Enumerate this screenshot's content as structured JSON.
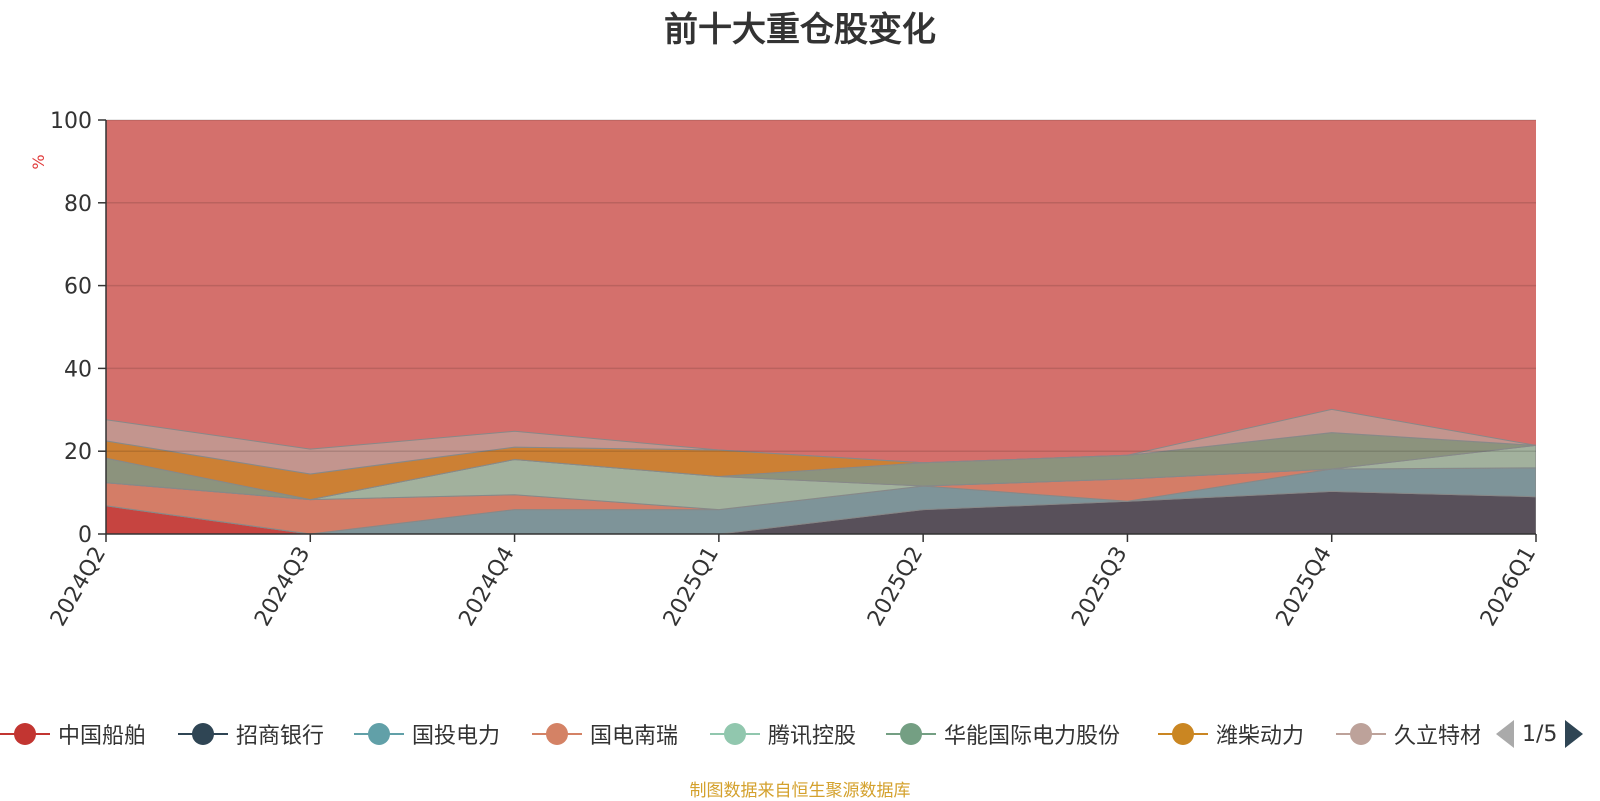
{
  "chart_data": {
    "type": "area",
    "title": "前十大重仓股变化",
    "ylabel": "%",
    "xlabel": "",
    "ylim": [
      0,
      100
    ],
    "yticks": [
      "0",
      "20",
      "40",
      "60",
      "80",
      "100"
    ],
    "categories": [
      "2024Q2",
      "2024Q3",
      "2024Q4",
      "2025Q1",
      "2025Q2",
      "2025Q3",
      "2025Q4",
      "2026Q1"
    ],
    "stacked": true,
    "grid": true,
    "legend_position": "bottom",
    "series": [
      {
        "name": "中国船舶",
        "values": [
          6.8,
          0,
          0,
          0,
          0,
          0,
          0,
          0
        ]
      },
      {
        "name": "招商银行",
        "values": [
          0,
          0,
          0,
          0,
          5.9,
          7.9,
          10.3,
          9
        ]
      },
      {
        "name": "国投电力",
        "values": [
          0,
          0,
          5.9,
          5.9,
          5.7,
          0,
          5.4,
          7
        ]
      },
      {
        "name": "国电南瑞",
        "values": [
          5.6,
          8.3,
          3.6,
          0,
          0,
          5.4,
          0,
          0
        ]
      },
      {
        "name": "腾讯控股",
        "values": [
          0,
          0,
          8.5,
          8,
          0,
          0,
          0,
          5.4
        ]
      },
      {
        "name": "华能国际电力股份",
        "values": [
          5.9,
          0,
          0,
          0,
          5.6,
          5.7,
          8.8,
          0
        ]
      },
      {
        "name": "潍柴动力",
        "values": [
          4.2,
          6.2,
          3.0,
          6.4,
          0,
          0,
          0,
          0
        ]
      },
      {
        "name": "久立特材",
        "values": [
          5.1,
          6.0,
          3.8,
          0,
          0,
          0,
          5.6,
          0
        ]
      }
    ],
    "legend_page": "1/5"
  },
  "footer": "制图数据来自恒生聚源数据库"
}
